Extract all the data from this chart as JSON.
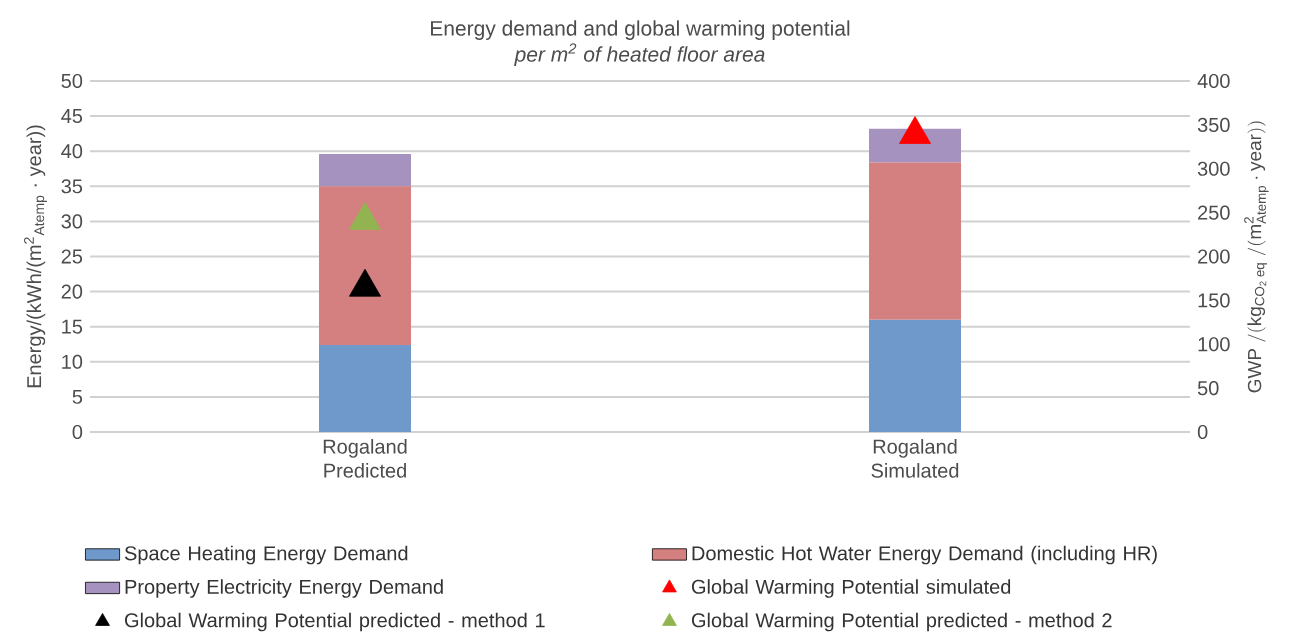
{
  "chart_data": {
    "type": "bar",
    "title": "Energy demand and global warming potential",
    "subtitle": "per m$^{2}$ of heated floor area",
    "ylabel": "Energy/(kWh/(m$^{2}$$_{Atemp}$ · year))",
    "y2label": "\\mathrm{GWP\\ /(kg_{CO_{2}\\,eq}\\ /(m^{2}_{Atemp}\\cdot year))}",
    "categories": [
      "Rogaland Predicted",
      "Rogaland Simulated"
    ],
    "stacked": true,
    "grid": "y",
    "legend": "bottom",
    "marker": "triangle",
    "ylim": [
      0,
      50
    ],
    "yticks": [
      0,
      5,
      10,
      15,
      20,
      25,
      30,
      35,
      40,
      45,
      50
    ],
    "y2lim": [
      0,
      400
    ],
    "y2ticks": [
      0,
      50,
      100,
      150,
      200,
      250,
      300,
      350,
      400
    ],
    "series": [
      {
        "name": "Space Heating Energy Demand",
        "color": "#7099cb",
        "values": [
          12.4,
          16.0
        ]
      },
      {
        "name": "Domestic Hot Water Energy Demand (including HR)",
        "color": "#d48080",
        "values": [
          22.6,
          22.4
        ]
      },
      {
        "name": "Property Electricity Energy Demand",
        "color": "#a692bf",
        "values": [
          4.6,
          4.8
        ]
      },
      {
        "name": "Global Warming Potential simulated",
        "type": "scatter",
        "axis": "y2",
        "color": "#ff0000",
        "values": [
          null,
          339
        ]
      },
      {
        "name": "Global Warming Potential predicted - method 1",
        "type": "scatter",
        "axis": "y2",
        "color": "#000000",
        "values": [
          165,
          null
        ]
      },
      {
        "name": "Global Warming Potential predicted - method 2",
        "type": "scatter",
        "axis": "y2",
        "color": "#92b450",
        "values": [
          241,
          null
        ]
      }
    ]
  }
}
